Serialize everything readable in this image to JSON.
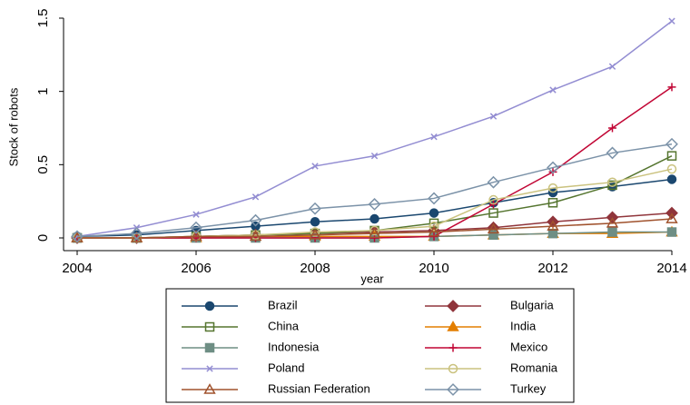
{
  "chart_data": {
    "type": "line",
    "y_label": "Stock of robots",
    "x_label": "year",
    "x": [
      2004,
      2005,
      2006,
      2007,
      2008,
      2009,
      2010,
      2011,
      2012,
      2013,
      2014
    ],
    "xlim": [
      2004,
      2014
    ],
    "xticks": [
      2004,
      2006,
      2008,
      2010,
      2012,
      2014
    ],
    "ylim": [
      0,
      1.5
    ],
    "yticks": [
      0,
      0.5,
      1,
      1.5
    ],
    "grid": false,
    "series": [
      {
        "name": "Brazil",
        "color": "#1a476f",
        "marker": "circle",
        "filled": true,
        "values": [
          0.01,
          0.02,
          0.05,
          0.08,
          0.11,
          0.13,
          0.17,
          0.24,
          0.31,
          0.35,
          0.4
        ]
      },
      {
        "name": "Bulgaria",
        "color": "#90353b",
        "marker": "diamond",
        "filled": true,
        "values": [
          0,
          0,
          0.01,
          0.02,
          0.03,
          0.04,
          0.05,
          0.07,
          0.11,
          0.14,
          0.17
        ]
      },
      {
        "name": "China",
        "color": "#55752f",
        "marker": "square",
        "filled": false,
        "values": [
          0,
          0,
          0.01,
          0.02,
          0.03,
          0.05,
          0.1,
          0.17,
          0.24,
          0.36,
          0.56
        ]
      },
      {
        "name": "India",
        "color": "#e37e00",
        "marker": "triangle",
        "filled": true,
        "values": [
          0,
          0,
          0,
          0.01,
          0.01,
          0.01,
          0.01,
          0.02,
          0.03,
          0.03,
          0.04
        ]
      },
      {
        "name": "Indonesia",
        "color": "#6e8e84",
        "marker": "square",
        "filled": true,
        "values": [
          0,
          0,
          0,
          0,
          0,
          0,
          0.01,
          0.02,
          0.03,
          0.04,
          0.04
        ]
      },
      {
        "name": "Mexico",
        "color": "#c10534",
        "marker": "plus",
        "filled": false,
        "values": [
          0,
          0,
          0,
          0,
          0,
          0,
          0.01,
          0.23,
          0.45,
          0.75,
          1.03
        ]
      },
      {
        "name": "Poland",
        "color": "#938dd2",
        "marker": "x",
        "filled": false,
        "values": [
          0.01,
          0.07,
          0.16,
          0.28,
          0.49,
          0.56,
          0.69,
          0.83,
          1.01,
          1.17,
          1.48
        ]
      },
      {
        "name": "Romania",
        "color": "#cac27e",
        "marker": "circle",
        "filled": false,
        "values": [
          0,
          0,
          0.01,
          0.02,
          0.04,
          0.05,
          0.08,
          0.26,
          0.34,
          0.38,
          0.47
        ]
      },
      {
        "name": "Russian Federation",
        "color": "#a0522d",
        "marker": "triangle",
        "filled": false,
        "values": [
          0,
          0,
          0.01,
          0.01,
          0.02,
          0.03,
          0.04,
          0.06,
          0.08,
          0.1,
          0.13
        ]
      },
      {
        "name": "Turkey",
        "color": "#7b92a8",
        "marker": "diamond",
        "filled": false,
        "values": [
          0.01,
          0.03,
          0.07,
          0.12,
          0.2,
          0.23,
          0.27,
          0.38,
          0.48,
          0.58,
          0.64
        ]
      }
    ]
  }
}
